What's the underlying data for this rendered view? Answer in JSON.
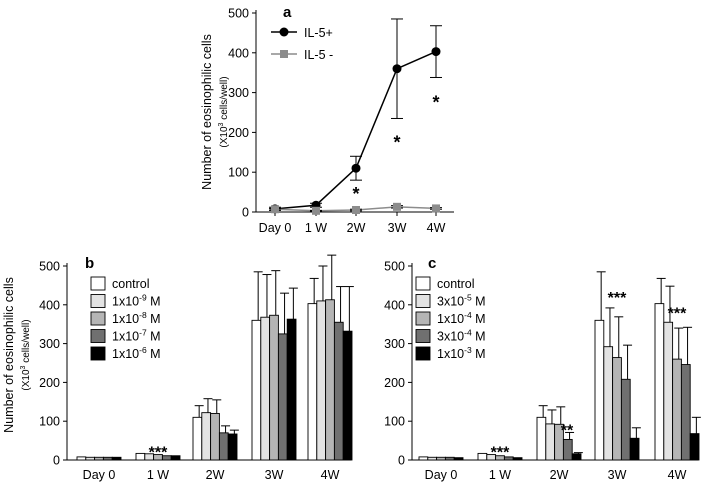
{
  "chart_data": [
    {
      "panel": "a",
      "type": "line",
      "ylabel": "Number of eosinophilic cells",
      "ylabel_unit_pre": "(X10",
      "ylabel_unit_sup": "3",
      "ylabel_unit_post": " cells/well)",
      "categories": [
        "Day 0",
        "1 W",
        "2W",
        "3W",
        "4W"
      ],
      "ylim": [
        0,
        500
      ],
      "yticks": [
        0,
        100,
        200,
        300,
        400,
        500
      ],
      "series": [
        {
          "name": "IL-5+",
          "values": [
            8,
            17,
            110,
            360,
            403
          ],
          "err": [
            4,
            5,
            30,
            125,
            65
          ],
          "color": "#000000",
          "marker": "circle"
        },
        {
          "name": "IL-5 -",
          "values": [
            7,
            3,
            5,
            13,
            9
          ],
          "err": [
            2,
            1,
            2,
            3,
            2
          ],
          "color": "#8c8c8c",
          "marker": "square"
        }
      ],
      "annotations": [
        {
          "category": "2W",
          "value": 60,
          "text": "*"
        },
        {
          "category": "3W",
          "value": 190,
          "text": "*"
        },
        {
          "category": "4W",
          "value": 290,
          "text": "*"
        }
      ]
    },
    {
      "panel": "b",
      "type": "bar",
      "ylabel": "Number of eosinophilic cells",
      "ylabel_unit_pre": "(X10",
      "ylabel_unit_sup": "3",
      "ylabel_unit_post": " cells/well)",
      "categories": [
        "Day 0",
        "1 W",
        "2W",
        "3W",
        "4W"
      ],
      "ylim": [
        0,
        500
      ],
      "yticks": [
        0,
        100,
        200,
        300,
        400,
        500
      ],
      "series": [
        {
          "name": "control",
          "label_base": "control",
          "label_exp": "",
          "label_unit": "",
          "color": "#ffffff",
          "values": [
            8,
            17,
            110,
            360,
            403
          ],
          "err": [
            0,
            0,
            30,
            125,
            65
          ]
        },
        {
          "name": "1x10-9 M",
          "label_base": "1x10",
          "label_exp": "-9",
          "label_unit": " M",
          "color": "#e3e3e3",
          "values": [
            7,
            16,
            122,
            368,
            410
          ],
          "err": [
            0,
            0,
            36,
            110,
            90
          ]
        },
        {
          "name": "1x10-8 M",
          "label_base": "1x10",
          "label_exp": "-8",
          "label_unit": " M",
          "color": "#b5b5b5",
          "values": [
            7,
            14,
            120,
            373,
            413
          ],
          "err": [
            0,
            0,
            35,
            115,
            115
          ]
        },
        {
          "name": "1x10-7 M",
          "label_base": "1x10",
          "label_exp": "-7",
          "label_unit": " M",
          "color": "#707070",
          "values": [
            7,
            11,
            70,
            325,
            355
          ],
          "err": [
            0,
            0,
            18,
            105,
            92
          ]
        },
        {
          "name": "1x10-6 M",
          "label_base": "1x10",
          "label_exp": "-6",
          "label_unit": " M",
          "color": "#000000",
          "values": [
            7,
            11,
            67,
            363,
            332
          ],
          "err": [
            0,
            0,
            10,
            80,
            115
          ]
        }
      ],
      "annotations": [
        {
          "category": "1 W",
          "value": 22,
          "text": "***"
        }
      ]
    },
    {
      "panel": "c",
      "type": "bar",
      "categories": [
        "Day 0",
        "1 W",
        "2W",
        "3W",
        "4W"
      ],
      "ylim": [
        0,
        500
      ],
      "yticks": [
        0,
        100,
        200,
        300,
        400,
        500
      ],
      "series": [
        {
          "name": "control",
          "label_base": "control",
          "label_exp": "",
          "label_unit": "",
          "color": "#ffffff",
          "values": [
            8,
            17,
            110,
            360,
            403
          ],
          "err": [
            0,
            0,
            30,
            125,
            65
          ]
        },
        {
          "name": "3x10-5 M",
          "label_base": "3x10",
          "label_exp": "-5",
          "label_unit": " M",
          "color": "#e3e3e3",
          "values": [
            7,
            14,
            93,
            292,
            355
          ],
          "err": [
            0,
            0,
            36,
            100,
            93
          ]
        },
        {
          "name": "1x10-4 M",
          "label_base": "1x10",
          "label_exp": "-4",
          "label_unit": " M",
          "color": "#b5b5b5",
          "values": [
            7,
            11,
            92,
            264,
            260
          ],
          "err": [
            0,
            0,
            45,
            105,
            80
          ]
        },
        {
          "name": "3x10-4 M",
          "label_base": "3x10",
          "label_exp": "-4",
          "label_unit": " M",
          "color": "#707070",
          "values": [
            7,
            8,
            53,
            208,
            246
          ],
          "err": [
            0,
            0,
            18,
            88,
            96
          ]
        },
        {
          "name": "1x10-3 M",
          "label_base": "1x10",
          "label_exp": "-3",
          "label_unit": " M",
          "color": "#000000",
          "values": [
            6,
            6,
            16,
            56,
            68
          ],
          "err": [
            0,
            0,
            3,
            27,
            42
          ]
        }
      ],
      "annotations": [
        {
          "category": "1 W",
          "value": 22,
          "text": "***"
        },
        {
          "category": "2W",
          "value": 78,
          "text": "**"
        },
        {
          "category": "3W",
          "value": 420,
          "text": "***"
        },
        {
          "category": "4W",
          "value": 380,
          "text": "***"
        }
      ]
    }
  ]
}
